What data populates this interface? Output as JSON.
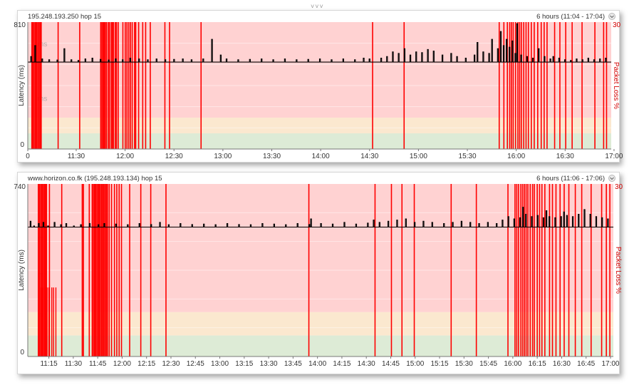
{
  "colors": {
    "loss": "#ff0000",
    "zone_red": "#ffd2d2",
    "zone_yellow": "#fbe8cf",
    "zone_green": "#ddebd6",
    "latency_line": "#000000",
    "right_axis": "#d40000"
  },
  "chart_data": [
    {
      "type": "line",
      "title": "195.248.193.250 hop 15",
      "range_label": "6 hours (11:04 - 17:04)",
      "xlabels": [
        "11:30",
        "12:00",
        "12:30",
        "13:00",
        "13:30",
        "14:00",
        "14:30",
        "15:00",
        "15:30",
        "16:00",
        "16:30",
        "17:00"
      ],
      "first_tick_label": "0",
      "ylabel": "Latency (ms)",
      "y2label": "Packet Loss %",
      "ymax_label": "810",
      "ymin_label": "0",
      "y2max_label": "30",
      "ylim": [
        0,
        810
      ],
      "watermarks": [
        "ms",
        "ms"
      ],
      "zones": {
        "green": [
          0,
          100
        ],
        "yellow": [
          100,
          200
        ],
        "red": [
          200,
          810
        ]
      },
      "baseline_latency": 555,
      "latency_spikes": [
        [
          0.5,
          590
        ],
        [
          1.2,
          660
        ],
        [
          2.4,
          575
        ],
        [
          3.6,
          570
        ],
        [
          5.0,
          568
        ],
        [
          6.2,
          640
        ],
        [
          7.4,
          570
        ],
        [
          8.6,
          565
        ],
        [
          9.8,
          575
        ],
        [
          11.0,
          580
        ],
        [
          12.4,
          572
        ],
        [
          13.8,
          568
        ],
        [
          15.0,
          575
        ],
        [
          16.2,
          570
        ],
        [
          17.5,
          580
        ],
        [
          19.0,
          575
        ],
        [
          20.5,
          570
        ],
        [
          22.0,
          575
        ],
        [
          23.5,
          570
        ],
        [
          25.0,
          572
        ],
        [
          26.5,
          575
        ],
        [
          28.0,
          570
        ],
        [
          30.0,
          575
        ],
        [
          31.5,
          700
        ],
        [
          33.0,
          600
        ],
        [
          34.0,
          575
        ],
        [
          36.0,
          570
        ],
        [
          38.0,
          572
        ],
        [
          40.0,
          575
        ],
        [
          42.0,
          570
        ],
        [
          44.0,
          575
        ],
        [
          46.0,
          570
        ],
        [
          48.0,
          572
        ],
        [
          50.0,
          575
        ],
        [
          52.0,
          570
        ],
        [
          54.0,
          575
        ],
        [
          56.0,
          570
        ],
        [
          57.5,
          580
        ],
        [
          58.5,
          575
        ],
        [
          60.5,
          580
        ],
        [
          61.5,
          590
        ],
        [
          62.5,
          620
        ],
        [
          63.5,
          610
        ],
        [
          64.5,
          640
        ],
        [
          65.5,
          600
        ],
        [
          66.5,
          620
        ],
        [
          67.5,
          615
        ],
        [
          68.5,
          635
        ],
        [
          69.5,
          625
        ],
        [
          71.0,
          600
        ],
        [
          72.5,
          610
        ],
        [
          73.5,
          590
        ],
        [
          75.0,
          580
        ],
        [
          76.5,
          600
        ],
        [
          78.0,
          620
        ],
        [
          79.0,
          610
        ],
        [
          80.5,
          640
        ],
        [
          81.5,
          660
        ],
        [
          82.5,
          650
        ],
        [
          83.5,
          610
        ],
        [
          84.5,
          600
        ],
        [
          85.5,
          590
        ],
        [
          86.5,
          580
        ],
        [
          87.5,
          640
        ],
        [
          88.5,
          590
        ],
        [
          89.5,
          575
        ],
        [
          90.0,
          590
        ],
        [
          91.0,
          580
        ],
        [
          92.0,
          570
        ],
        [
          93.0,
          565
        ],
        [
          94.0,
          575
        ],
        [
          95.0,
          570
        ],
        [
          96.0,
          580
        ],
        [
          97.0,
          570
        ],
        [
          98.0,
          575
        ],
        [
          99.0,
          580
        ],
        [
          77.0,
          680
        ],
        [
          79.5,
          700
        ],
        [
          81.0,
          750
        ],
        [
          82.0,
          700
        ],
        [
          83.0,
          690
        ],
        [
          83.8,
          800
        ]
      ],
      "loss_times": [
        0.7,
        0.9,
        1.1,
        1.3,
        1.5,
        1.7,
        1.9,
        2.1,
        2.3,
        5.2,
        8.9,
        12.5,
        12.7,
        12.9,
        13.1,
        13.3,
        13.5,
        13.8,
        14.0,
        14.3,
        14.5,
        14.7,
        15.0,
        15.2,
        15.5,
        16.3,
        16.7,
        17.0,
        17.3,
        17.6,
        17.9,
        18.3,
        18.5,
        19.0,
        19.7,
        20.2,
        21.0,
        23.5,
        24.3,
        29.7,
        59.1,
        64.5,
        80.8,
        81.6,
        82.2,
        82.6,
        82.9,
        83.2,
        83.6,
        84.0,
        84.3,
        84.6,
        85.0,
        85.4,
        85.8,
        86.3,
        86.8,
        87.4,
        88.0,
        88.5,
        89.0,
        90.3,
        91.2,
        92.2,
        93.3,
        95.0,
        97.2,
        98.7,
        99.2
      ]
    },
    {
      "type": "line",
      "title": "www.horizon.co.fk (195.248.193.134) hop 15",
      "range_label": "6 hours (11:06 - 17:06)",
      "xlabels": [
        "11:15",
        "11:30",
        "11:45",
        "12:00",
        "12:15",
        "12:30",
        "12:45",
        "13:00",
        "13:15",
        "13:30",
        "13:45",
        "14:00",
        "14:15",
        "14:30",
        "14:45",
        "15:00",
        "15:15",
        "15:30",
        "15:45",
        "16:00",
        "16:15",
        "16:30",
        "16:45",
        "17:00"
      ],
      "ylabel": "Latency (ms)",
      "y2label": "Packet Loss %",
      "ymax_label": "740",
      "ymin_label": "0",
      "y2max_label": "30",
      "ylim": [
        0,
        740
      ],
      "watermarks": [
        "ms",
        "ms",
        "ms"
      ],
      "zones": {
        "green": [
          0,
          90
        ],
        "yellow": [
          90,
          190
        ],
        "red": [
          190,
          740
        ]
      },
      "baseline_latency": 555,
      "latency_spikes": [
        [
          0.4,
          580
        ],
        [
          1.0,
          560
        ],
        [
          1.8,
          570
        ],
        [
          2.6,
          575
        ],
        [
          3.4,
          560
        ],
        [
          4.5,
          575
        ],
        [
          5.6,
          565
        ],
        [
          6.5,
          570
        ],
        [
          7.8,
          560
        ],
        [
          9.0,
          565
        ],
        [
          10.5,
          570
        ],
        [
          12.0,
          565
        ],
        [
          13.0,
          570
        ],
        [
          15.0,
          568
        ],
        [
          17.0,
          565
        ],
        [
          19.0,
          570
        ],
        [
          21.0,
          566
        ],
        [
          22.5,
          575
        ],
        [
          24.0,
          565
        ],
        [
          26.0,
          570
        ],
        [
          28.0,
          566
        ],
        [
          30.0,
          568
        ],
        [
          32.0,
          565
        ],
        [
          34.0,
          570
        ],
        [
          36.0,
          566
        ],
        [
          38.0,
          565
        ],
        [
          40.0,
          570
        ],
        [
          42.0,
          568
        ],
        [
          44.0,
          565
        ],
        [
          46.0,
          570
        ],
        [
          48.0,
          566
        ],
        [
          48.3,
          590
        ],
        [
          50.0,
          570
        ],
        [
          52.0,
          568
        ],
        [
          54.0,
          575
        ],
        [
          56.0,
          568
        ],
        [
          58.0,
          572
        ],
        [
          59.0,
          585
        ],
        [
          60.0,
          575
        ],
        [
          61.5,
          580
        ],
        [
          63.0,
          585
        ],
        [
          64.5,
          590
        ],
        [
          66.0,
          575
        ],
        [
          67.5,
          580
        ],
        [
          69.0,
          575
        ],
        [
          71.0,
          570
        ],
        [
          72.5,
          575
        ],
        [
          74.0,
          580
        ],
        [
          75.5,
          575
        ],
        [
          77.0,
          570
        ],
        [
          78.5,
          575
        ],
        [
          80.0,
          570
        ],
        [
          81.0,
          585
        ],
        [
          82.0,
          600
        ],
        [
          83.0,
          590
        ],
        [
          84.0,
          595
        ],
        [
          85.0,
          610
        ],
        [
          86.0,
          600
        ],
        [
          87.0,
          605
        ],
        [
          88.0,
          595
        ],
        [
          89.0,
          600
        ],
        [
          90.0,
          595
        ],
        [
          91.0,
          600
        ],
        [
          92.0,
          605
        ],
        [
          93.0,
          600
        ],
        [
          94.0,
          610
        ],
        [
          95.0,
          630
        ],
        [
          96.0,
          610
        ],
        [
          97.0,
          600
        ],
        [
          98.0,
          595
        ],
        [
          99.0,
          590
        ],
        [
          84.5,
          640
        ],
        [
          88.5,
          625
        ],
        [
          91.5,
          620
        ]
      ],
      "loss_times": [
        1.8,
        2.0,
        2.2,
        2.4,
        2.6,
        2.8,
        3.0,
        3.2,
        2.9,
        3.7,
        5.8,
        9.3,
        9.5,
        10.5,
        11.0,
        11.2,
        11.4,
        11.6,
        11.8,
        12.0,
        12.2,
        12.4,
        12.6,
        12.8,
        13.0,
        13.2,
        13.4,
        13.6,
        13.9,
        14.3,
        14.8,
        15.2,
        15.6,
        16.0,
        17.4,
        19.3,
        21.0,
        23.6,
        48.0,
        59.3,
        62.1,
        63.9,
        66.0,
        72.3,
        76.6,
        82.0,
        83.2,
        83.5,
        83.8,
        84.2,
        84.5,
        84.8,
        85.1,
        85.4,
        85.8,
        86.2,
        86.5,
        87.0,
        87.4,
        87.8,
        88.3,
        89.1,
        89.6,
        90.2,
        90.9,
        91.6,
        92.4,
        93.5,
        94.6,
        96.2,
        98.0,
        98.8,
        99.4
      ],
      "low_loss_times": [
        2.2,
        2.6,
        3.0,
        3.3,
        3.6,
        4.1,
        4.4,
        4.8
      ]
    }
  ]
}
